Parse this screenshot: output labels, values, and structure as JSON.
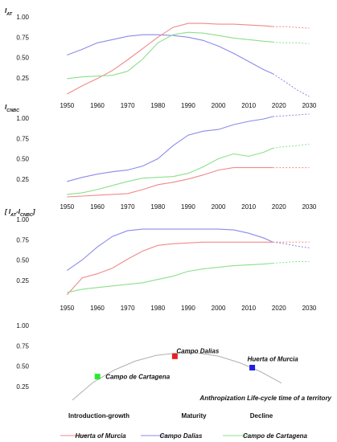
{
  "chart_data": [
    {
      "type": "line",
      "ylabel_main": "I",
      "ylabel_sub": "AT",
      "ylabel_pre": "",
      "ylabel_post": "",
      "xlim": [
        1943,
        2032
      ],
      "ylim": [
        0,
        1.15
      ],
      "x_ticks": [
        "1950",
        "1960",
        "1970",
        "1980",
        "1990",
        "2000",
        "2010",
        "2020",
        "2030"
      ],
      "y_ticks": [
        "0.25",
        "0.50",
        "0.75",
        "1.00"
      ],
      "grid": false,
      "projection_from": 2018,
      "series": [
        {
          "color": "#8b8be8",
          "x": [
            1950,
            1955,
            1960,
            1965,
            1970,
            1975,
            1980,
            1985,
            1990,
            1995,
            2000,
            2005,
            2010,
            2015,
            2018,
            2022,
            2026,
            2030
          ],
          "y": [
            0.53,
            0.6,
            0.68,
            0.72,
            0.76,
            0.78,
            0.78,
            0.77,
            0.75,
            0.71,
            0.64,
            0.55,
            0.45,
            0.35,
            0.3,
            0.2,
            0.1,
            0.02
          ]
        },
        {
          "color": "#f08a8a",
          "x": [
            1950,
            1955,
            1960,
            1965,
            1970,
            1975,
            1980,
            1985,
            1990,
            1995,
            2000,
            2005,
            2010,
            2015,
            2018,
            2022,
            2026,
            2030
          ],
          "y": [
            0.05,
            0.15,
            0.24,
            0.34,
            0.47,
            0.61,
            0.75,
            0.87,
            0.92,
            0.92,
            0.91,
            0.91,
            0.9,
            0.89,
            0.88,
            0.88,
            0.87,
            0.86
          ]
        },
        {
          "color": "#8be08b",
          "x": [
            1950,
            1955,
            1960,
            1965,
            1970,
            1975,
            1980,
            1985,
            1990,
            1995,
            2000,
            2005,
            2010,
            2015,
            2018,
            2022,
            2026,
            2030
          ],
          "y": [
            0.24,
            0.26,
            0.27,
            0.28,
            0.33,
            0.48,
            0.68,
            0.78,
            0.81,
            0.8,
            0.77,
            0.74,
            0.72,
            0.7,
            0.69,
            0.68,
            0.68,
            0.67
          ]
        }
      ]
    },
    {
      "type": "line",
      "ylabel_main": "I",
      "ylabel_sub": "CNBC",
      "ylabel_pre": "",
      "ylabel_post": "",
      "xlim": [
        1943,
        2032
      ],
      "ylim": [
        0,
        1.15
      ],
      "x_ticks": [
        "1950",
        "1960",
        "1970",
        "1980",
        "1990",
        "2000",
        "2010",
        "2020",
        "2030"
      ],
      "y_ticks": [
        "0.25",
        "0.50",
        "0.75",
        "1.00"
      ],
      "grid": false,
      "projection_from": 2018,
      "series": [
        {
          "color": "#8b8be8",
          "x": [
            1950,
            1955,
            1960,
            1965,
            1970,
            1975,
            1980,
            1985,
            1990,
            1995,
            2000,
            2005,
            2010,
            2015,
            2018,
            2022,
            2026,
            2030
          ],
          "y": [
            0.22,
            0.27,
            0.31,
            0.34,
            0.36,
            0.41,
            0.5,
            0.66,
            0.79,
            0.84,
            0.86,
            0.92,
            0.96,
            0.99,
            1.02,
            1.03,
            1.04,
            1.05
          ]
        },
        {
          "color": "#f08a8a",
          "x": [
            1950,
            1955,
            1960,
            1965,
            1970,
            1975,
            1980,
            1985,
            1990,
            1995,
            2000,
            2005,
            2010,
            2015,
            2018,
            2022,
            2026,
            2030
          ],
          "y": [
            0.03,
            0.04,
            0.05,
            0.06,
            0.07,
            0.12,
            0.18,
            0.21,
            0.25,
            0.3,
            0.36,
            0.39,
            0.39,
            0.39,
            0.39,
            0.39,
            0.39,
            0.39
          ]
        },
        {
          "color": "#8be08b",
          "x": [
            1950,
            1955,
            1960,
            1965,
            1970,
            1975,
            1980,
            1985,
            1990,
            1995,
            2000,
            2005,
            2010,
            2015,
            2018,
            2022,
            2026,
            2030
          ],
          "y": [
            0.06,
            0.08,
            0.12,
            0.17,
            0.22,
            0.26,
            0.27,
            0.28,
            0.32,
            0.4,
            0.5,
            0.56,
            0.53,
            0.58,
            0.63,
            0.65,
            0.66,
            0.68
          ]
        }
      ]
    },
    {
      "type": "line",
      "ylabel_main": "I",
      "ylabel_sub": "AT",
      "ylabel_pre": "[ ",
      "ylabel_post": "-I",
      "ylabel_sub2": "CNBC",
      "ylabel_end": "]",
      "xlim": [
        1943,
        2032
      ],
      "ylim": [
        0,
        1.15
      ],
      "x_ticks": [
        "1950",
        "1960",
        "1970",
        "1980",
        "1990",
        "2000",
        "2010",
        "2020",
        "2030"
      ],
      "y_ticks": [
        "0.25",
        "0.50",
        "0.75",
        "1.00"
      ],
      "grid": false,
      "projection_from": 2018,
      "series": [
        {
          "color": "#8b8be8",
          "x": [
            1950,
            1955,
            1960,
            1965,
            1970,
            1975,
            1980,
            1985,
            1990,
            1995,
            2000,
            2005,
            2010,
            2015,
            2018,
            2022,
            2026,
            2030
          ],
          "y": [
            0.37,
            0.5,
            0.66,
            0.79,
            0.86,
            0.88,
            0.88,
            0.88,
            0.88,
            0.88,
            0.88,
            0.87,
            0.83,
            0.77,
            0.72,
            0.7,
            0.67,
            0.65
          ]
        },
        {
          "color": "#f08a8a",
          "x": [
            1950,
            1955,
            1960,
            1965,
            1970,
            1975,
            1980,
            1985,
            1990,
            1995,
            2000,
            2005,
            2010,
            2015,
            2018,
            2022,
            2026,
            2030
          ],
          "y": [
            0.07,
            0.28,
            0.33,
            0.4,
            0.51,
            0.61,
            0.68,
            0.7,
            0.71,
            0.72,
            0.72,
            0.72,
            0.72,
            0.72,
            0.72,
            0.72,
            0.72,
            0.72
          ]
        },
        {
          "color": "#8be08b",
          "x": [
            1950,
            1955,
            1960,
            1965,
            1970,
            1975,
            1980,
            1985,
            1990,
            1995,
            2000,
            2005,
            2010,
            2015,
            2018,
            2022,
            2026,
            2030
          ],
          "y": [
            0.1,
            0.14,
            0.16,
            0.18,
            0.2,
            0.22,
            0.26,
            0.3,
            0.36,
            0.39,
            0.41,
            0.43,
            0.44,
            0.45,
            0.46,
            0.47,
            0.48,
            0.48
          ]
        }
      ]
    },
    {
      "type": "scatter",
      "ylim": [
        0,
        1.15
      ],
      "y_ticks": [
        "0.25",
        "0.50",
        "0.75",
        "1.00"
      ],
      "grid": false,
      "curve": {
        "color": "#b0b0b0",
        "x": [
          0.0,
          0.1,
          0.2,
          0.3,
          0.4,
          0.5,
          0.6,
          0.7,
          0.8,
          0.9,
          1.0
        ],
        "y": [
          0.13,
          0.35,
          0.5,
          0.61,
          0.68,
          0.71,
          0.71,
          0.67,
          0.59,
          0.48,
          0.34
        ]
      },
      "points": [
        {
          "label": "Campo de Cartagena",
          "x": 0.12,
          "y": 0.42,
          "color": "#2ee82e"
        },
        {
          "label": "Campo Dalias",
          "x": 0.49,
          "y": 0.67,
          "color": "#e82020"
        },
        {
          "label": "Huerta of Murcia",
          "x": 0.86,
          "y": 0.53,
          "color": "#2020e0"
        }
      ],
      "phases": [
        "Introduction-growth",
        "Maturity",
        "Decline"
      ],
      "annotation": "Anthropization Life-cycle time of a territory"
    }
  ],
  "legend": {
    "placement": "bottom",
    "items": [
      {
        "label": "Huerta of Murcia",
        "color": "#f08a8a"
      },
      {
        "label": "Campo Dalias",
        "color": "#8b8be8"
      },
      {
        "label": "Campo de Cartagena",
        "color": "#8be08b"
      }
    ]
  }
}
